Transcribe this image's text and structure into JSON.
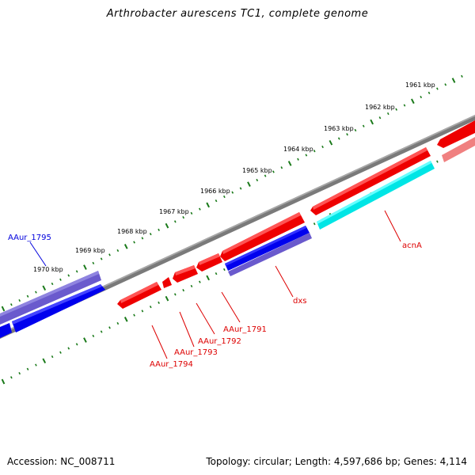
{
  "title": "Arthrobacter aurescens TC1, complete genome",
  "footer": {
    "accession": "Accession: NC_008711",
    "summary": "Topology: circular; Length: 4,597,686 bp; Genes: 4,114"
  },
  "colors": {
    "backbone": "#808080",
    "tick": "#1a7a1a",
    "red_gene": "#ee0000",
    "blue_gene": "#0000ee",
    "purple_gene": "#6a5acd",
    "cyan_gene": "#00e5e5",
    "pink_gene": "#f08080",
    "red_label": "#dd0000",
    "blue_label": "#0000dd"
  },
  "kbp_labels": [
    "1961 kbp",
    "1962 kbp",
    "1963 kbp",
    "1964 kbp",
    "1965 kbp",
    "1966 kbp",
    "1967 kbp",
    "1968 kbp",
    "1969 kbp",
    "1970 kbp"
  ],
  "genes": [
    {
      "label": "AAur_1795",
      "color_key": "blue_label"
    },
    {
      "label": "acnA",
      "color_key": "red_label"
    },
    {
      "label": "dxs",
      "color_key": "red_label"
    },
    {
      "label": "AAur_1791",
      "color_key": "red_label"
    },
    {
      "label": "AAur_1792",
      "color_key": "red_label"
    },
    {
      "label": "AAur_1793",
      "color_key": "red_label"
    },
    {
      "label": "AAur_1794",
      "color_key": "red_label"
    }
  ]
}
